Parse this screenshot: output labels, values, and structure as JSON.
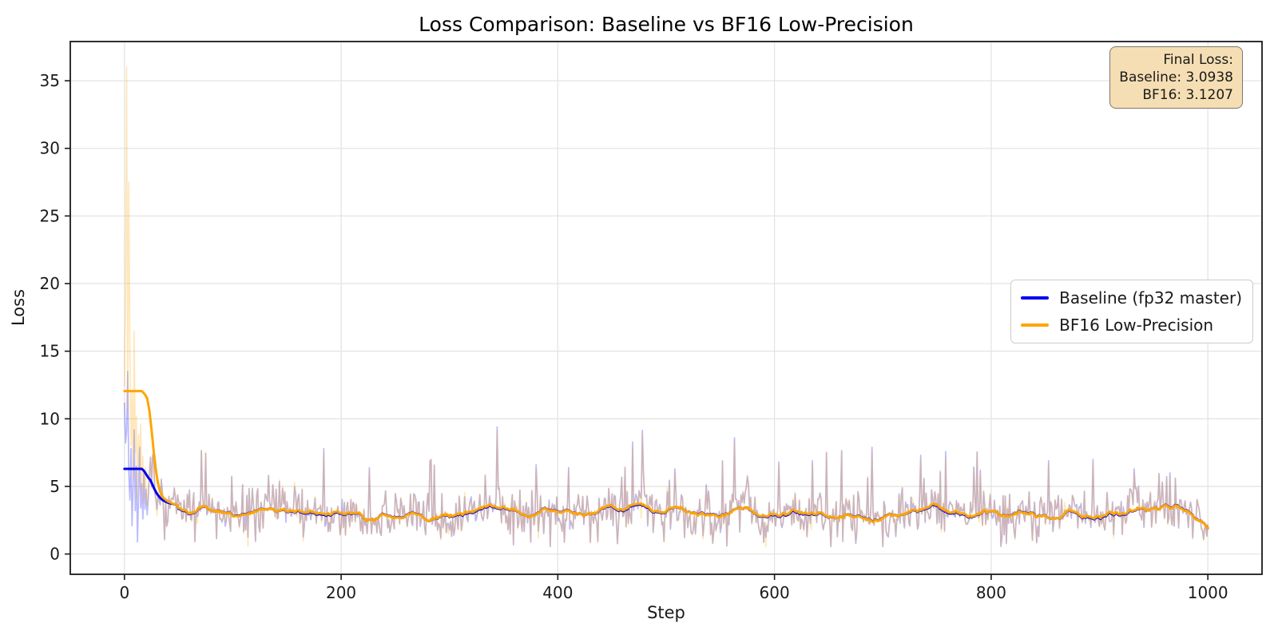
{
  "chart_data": {
    "type": "line",
    "title": "Loss Comparison: Baseline vs BF16 Low-Precision",
    "xlabel": "Step",
    "ylabel": "Loss",
    "xlim": [
      -50,
      1050
    ],
    "ylim": [
      -1.5,
      37.9
    ],
    "xticks": [
      0,
      200,
      400,
      600,
      800,
      1000
    ],
    "yticks": [
      0,
      5,
      10,
      15,
      20,
      25,
      30,
      35
    ],
    "grid": true,
    "grid_color": "#e4e4e4",
    "legend": {
      "position": "center right",
      "entries": [
        {
          "label": "Baseline (fp32 master)",
          "color": "#0000ee"
        },
        {
          "label": "BF16 Low-Precision",
          "color": "#ffa500"
        }
      ]
    },
    "annotation": {
      "lines": [
        "Final Loss:",
        "Baseline: 3.0938",
        "BF16: 3.1207"
      ],
      "facecolor_hex": "#f5deb3",
      "edgecolor_hex": "#7d786e"
    },
    "series": [
      {
        "name": "Baseline raw per-step loss",
        "role": "raw",
        "color": "#0000ff",
        "alpha": 0.27,
        "early_points": [
          [
            0,
            11.2
          ],
          [
            1,
            8.2
          ],
          [
            2,
            9.0
          ],
          [
            3,
            13.5
          ],
          [
            4,
            6.0
          ],
          [
            5,
            4.0
          ],
          [
            6,
            7.8
          ],
          [
            7,
            2.1
          ],
          [
            8,
            5.0
          ],
          [
            9,
            9.2
          ],
          [
            10,
            3.2
          ],
          [
            11,
            6.5
          ],
          [
            12,
            0.9
          ],
          [
            13,
            4.4
          ],
          [
            14,
            7.9
          ],
          [
            15,
            3.4
          ],
          [
            16,
            5.2
          ],
          [
            17,
            2.6
          ],
          [
            18,
            6.1
          ],
          [
            19,
            3.3
          ],
          [
            20,
            4.8
          ],
          [
            21,
            2.9
          ],
          [
            22,
            4.2
          ]
        ],
        "description": "noisy per-step loss; settles to band ~0.6-6 around mean ~2.9 with spikes to ~9.4"
      },
      {
        "name": "BF16 raw per-step loss",
        "role": "raw",
        "color": "#ffa500",
        "alpha": 0.27,
        "early_points": [
          [
            0,
            12.4
          ],
          [
            1,
            19.5
          ],
          [
            2,
            36.0
          ],
          [
            3,
            10.5
          ],
          [
            4,
            27.5
          ],
          [
            5,
            15.5
          ],
          [
            6,
            8.0
          ],
          [
            7,
            12.0
          ],
          [
            8,
            5.5
          ],
          [
            9,
            16.5
          ],
          [
            10,
            7.5
          ],
          [
            11,
            10.2
          ],
          [
            12,
            4.1
          ],
          [
            13,
            8.8
          ],
          [
            14,
            6.2
          ],
          [
            15,
            9.6
          ],
          [
            16,
            4.6
          ],
          [
            17,
            7.2
          ],
          [
            18,
            3.8
          ],
          [
            19,
            6.4
          ],
          [
            20,
            5.0
          ],
          [
            21,
            3.6
          ],
          [
            22,
            4.6
          ]
        ],
        "description": "noisy per-step loss; early spikes up to 36, then overlaps baseline raw"
      },
      {
        "name": "Baseline (fp32 master)",
        "role": "smoothed",
        "color": "#0000ee",
        "width": 3,
        "early_points": [
          [
            0,
            6.3
          ],
          [
            16,
            6.3
          ],
          [
            18,
            6.15
          ],
          [
            20,
            5.9
          ],
          [
            22,
            5.65
          ],
          [
            24,
            5.45
          ],
          [
            26,
            5.1
          ],
          [
            28,
            4.75
          ],
          [
            30,
            4.45
          ],
          [
            33,
            4.15
          ],
          [
            36,
            3.95
          ],
          [
            40,
            3.8
          ],
          [
            45,
            3.7
          ],
          [
            50,
            3.62
          ]
        ]
      },
      {
        "name": "BF16 Low-Precision",
        "role": "smoothed",
        "color": "#ffa500",
        "width": 3,
        "early_points": [
          [
            0,
            12.05
          ],
          [
            16,
            12.05
          ],
          [
            19,
            11.8
          ],
          [
            21,
            11.5
          ],
          [
            23,
            10.6
          ],
          [
            25,
            9.2
          ],
          [
            27,
            7.6
          ],
          [
            29,
            6.2
          ],
          [
            31,
            5.2
          ],
          [
            33,
            4.6
          ],
          [
            36,
            4.15
          ],
          [
            40,
            3.9
          ],
          [
            45,
            3.72
          ],
          [
            50,
            3.62
          ]
        ]
      }
    ],
    "smoothed_trend_points": [
      [
        50,
        3.62
      ],
      [
        58,
        3.35
      ],
      [
        65,
        3.2
      ],
      [
        72,
        3.45
      ],
      [
        80,
        3.25
      ],
      [
        90,
        3.05
      ],
      [
        100,
        3.0
      ],
      [
        110,
        3.15
      ],
      [
        120,
        3.3
      ],
      [
        132,
        3.52
      ],
      [
        140,
        3.45
      ],
      [
        150,
        3.5
      ],
      [
        158,
        3.2
      ],
      [
        165,
        3.0
      ],
      [
        172,
        3.1
      ],
      [
        180,
        2.95
      ],
      [
        190,
        2.9
      ],
      [
        200,
        2.95
      ],
      [
        210,
        3.0
      ],
      [
        218,
        2.85
      ],
      [
        228,
        2.75
      ],
      [
        238,
        2.9
      ],
      [
        248,
        2.65
      ],
      [
        258,
        2.6
      ],
      [
        268,
        2.75
      ],
      [
        278,
        2.7
      ],
      [
        288,
        2.85
      ],
      [
        298,
        2.9
      ],
      [
        308,
        3.0
      ],
      [
        318,
        3.1
      ],
      [
        328,
        3.25
      ],
      [
        338,
        3.5
      ],
      [
        348,
        3.45
      ],
      [
        355,
        3.3
      ],
      [
        362,
        3.1
      ],
      [
        372,
        2.9
      ],
      [
        382,
        3.0
      ],
      [
        392,
        3.1
      ],
      [
        400,
        3.2
      ],
      [
        410,
        3.05
      ],
      [
        420,
        2.95
      ],
      [
        430,
        3.1
      ],
      [
        440,
        3.25
      ],
      [
        450,
        3.3
      ],
      [
        458,
        3.2
      ],
      [
        468,
        3.45
      ],
      [
        478,
        3.5
      ],
      [
        488,
        3.3
      ],
      [
        498,
        3.15
      ],
      [
        508,
        3.1
      ],
      [
        518,
        3.0
      ],
      [
        528,
        3.05
      ],
      [
        538,
        3.15
      ],
      [
        548,
        3.2
      ],
      [
        558,
        3.35
      ],
      [
        568,
        3.5
      ],
      [
        575,
        3.4
      ],
      [
        585,
        3.0
      ],
      [
        595,
        2.9
      ],
      [
        605,
        2.8
      ],
      [
        615,
        2.85
      ],
      [
        625,
        2.95
      ],
      [
        635,
        2.9
      ],
      [
        645,
        2.8
      ],
      [
        655,
        2.85
      ],
      [
        665,
        2.9
      ],
      [
        675,
        2.85
      ],
      [
        685,
        2.6
      ],
      [
        695,
        2.65
      ],
      [
        705,
        2.9
      ],
      [
        715,
        3.0
      ],
      [
        725,
        3.15
      ],
      [
        735,
        3.25
      ],
      [
        745,
        3.3
      ],
      [
        752,
        3.2
      ],
      [
        762,
        3.0
      ],
      [
        772,
        2.95
      ],
      [
        782,
        3.0
      ],
      [
        792,
        3.05
      ],
      [
        802,
        2.95
      ],
      [
        812,
        2.9
      ],
      [
        822,
        3.0
      ],
      [
        832,
        3.05
      ],
      [
        842,
        2.85
      ],
      [
        852,
        2.8
      ],
      [
        862,
        2.9
      ],
      [
        872,
        2.95
      ],
      [
        882,
        2.85
      ],
      [
        892,
        2.8
      ],
      [
        902,
        2.95
      ],
      [
        912,
        3.05
      ],
      [
        922,
        3.1
      ],
      [
        932,
        3.15
      ],
      [
        942,
        3.25
      ],
      [
        952,
        3.35
      ],
      [
        962,
        3.52
      ],
      [
        970,
        3.45
      ],
      [
        978,
        3.2
      ],
      [
        986,
        2.9
      ],
      [
        994,
        2.5
      ],
      [
        1000,
        2.2
      ]
    ],
    "notable_spikes": [
      [
        184,
        7.8
      ],
      [
        226,
        6.4
      ],
      [
        282,
        6.9
      ],
      [
        344,
        9.4
      ],
      [
        380,
        6.6
      ],
      [
        410,
        6.4
      ],
      [
        478,
        9.15
      ],
      [
        508,
        6.3
      ],
      [
        563,
        8.6
      ],
      [
        604,
        6.8
      ],
      [
        635,
        6.9
      ],
      [
        690,
        7.9
      ],
      [
        735,
        7.3
      ],
      [
        790,
        6.2
      ],
      [
        853,
        6.9
      ],
      [
        894,
        7.0
      ],
      [
        932,
        6.3
      ],
      [
        965,
        6.0
      ]
    ],
    "noise": {
      "seed": 12,
      "sigma": 0.92,
      "spike_prob": 0.028,
      "floor": 0.55,
      "ceiling": 9.6,
      "steps": 1000
    }
  }
}
